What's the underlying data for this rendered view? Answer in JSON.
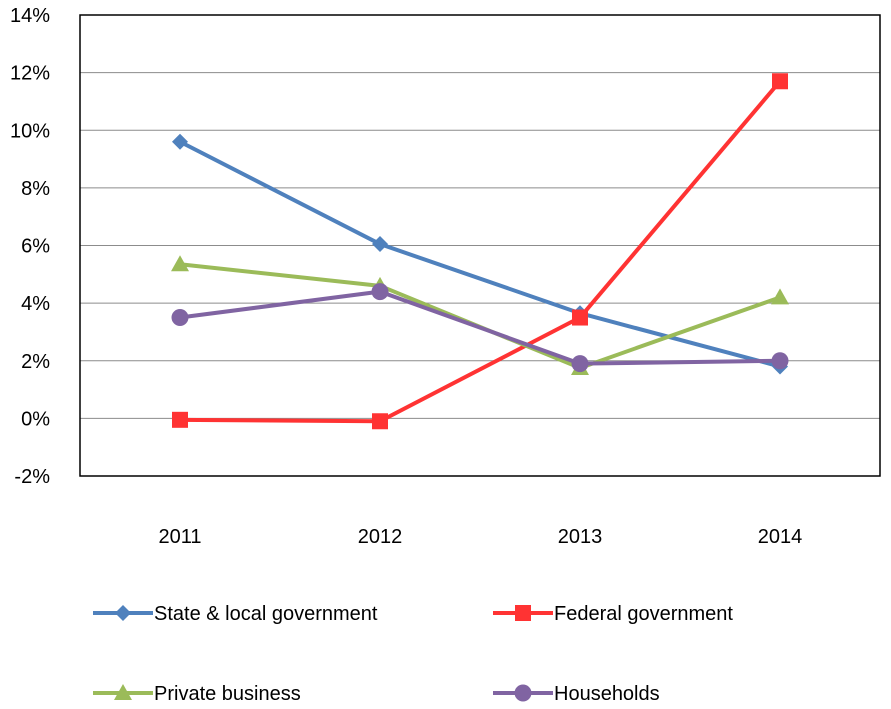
{
  "chart_data": {
    "type": "line",
    "categories": [
      "2011",
      "2012",
      "2013",
      "2014"
    ],
    "ylim": [
      -2,
      14
    ],
    "y_ticks": [
      -2,
      0,
      2,
      4,
      6,
      8,
      10,
      12,
      14
    ],
    "y_tick_suffix": "%",
    "grid": true,
    "legend_position": "bottom",
    "series": [
      {
        "name": "State & local government",
        "values": [
          9.6,
          6.05,
          3.65,
          1.8
        ],
        "color": "#4F81BD",
        "marker": "diamond"
      },
      {
        "name": "Federal government",
        "values": [
          -0.05,
          -0.1,
          3.5,
          11.7
        ],
        "color": "#FF3333",
        "marker": "square"
      },
      {
        "name": "Private business",
        "values": [
          5.35,
          4.6,
          1.75,
          4.2
        ],
        "color": "#9BBB59",
        "marker": "triangle"
      },
      {
        "name": "Households",
        "values": [
          3.5,
          4.4,
          1.9,
          2.0
        ],
        "color": "#8064A2",
        "marker": "circle"
      }
    ]
  }
}
